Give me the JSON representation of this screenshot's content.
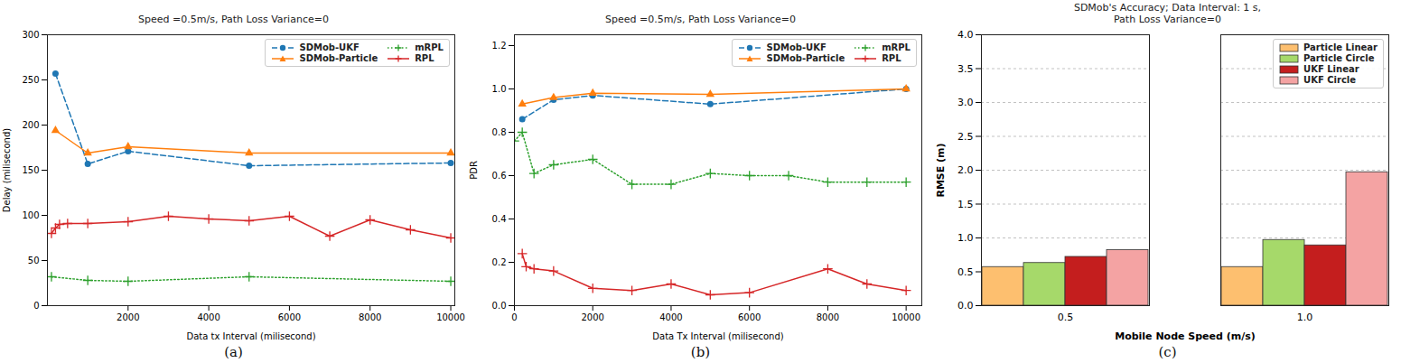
{
  "chart_data": [
    {
      "type": "line",
      "title": "Speed =0.5m/s, Path Loss Variance=0",
      "caption": "(a)",
      "x_label": "Data tx Interval (milisecond)",
      "y_label": "Delay (milisecond)",
      "xlim": [
        0,
        10100
      ],
      "xticks": [
        2000,
        4000,
        6000,
        8000,
        10000
      ],
      "ylim": [
        0,
        300
      ],
      "yticks": [
        0,
        50,
        100,
        150,
        200,
        250,
        300
      ],
      "grid": false,
      "legend": "upper right",
      "series": [
        {
          "name": "SDMob-UKF",
          "color": "#1f77b4",
          "marker": "circle",
          "line_style": "dashed",
          "x": [
            200,
            1000,
            2000,
            5000,
            10000
          ],
          "values": [
            257,
            157,
            171,
            155,
            158
          ]
        },
        {
          "name": "SDMob-Particle",
          "color": "#ff7f0e",
          "marker": "triangle",
          "line_style": "solid",
          "x": [
            200,
            1000,
            2000,
            5000,
            10000
          ],
          "values": [
            194,
            169,
            176,
            169,
            169
          ]
        },
        {
          "name": "mRPL",
          "color": "#2ca02c",
          "marker": "plus",
          "line_style": "dotted",
          "x": [
            100,
            1000,
            2000,
            5000,
            10000
          ],
          "values": [
            32,
            28,
            27,
            32,
            27
          ]
        },
        {
          "name": "RPL",
          "color": "#d62728",
          "marker": "plus",
          "line_style": "solid",
          "x": [
            100,
            200,
            300,
            500,
            1000,
            2000,
            3000,
            4000,
            5000,
            6000,
            7000,
            8000,
            9000,
            10000
          ],
          "values": [
            80,
            86,
            90,
            91,
            91,
            93,
            99,
            96,
            94,
            99,
            77,
            95,
            84,
            75
          ]
        }
      ]
    },
    {
      "type": "line",
      "title": "Speed =0.5m/s, Path Loss Variance=0",
      "caption": "(b)",
      "x_label": "Data Tx Interval (milisecond)",
      "y_label": "PDR",
      "xlim": [
        0,
        10400
      ],
      "xticks": [
        0,
        2000,
        4000,
        6000,
        8000,
        10000
      ],
      "ylim": [
        0,
        1.25
      ],
      "yticks": [
        {
          "value": 0,
          "label": "0.0"
        },
        0.2,
        0.4,
        0.6,
        0.8,
        {
          "value": 1,
          "label": "1.0"
        },
        1.2
      ],
      "grid": false,
      "legend": "upper right",
      "series": [
        {
          "name": "SDMob-UKF",
          "color": "#1f77b4",
          "marker": "circle",
          "line_style": "dashed",
          "x": [
            200,
            1000,
            2000,
            5000,
            10000
          ],
          "values": [
            0.86,
            0.95,
            0.97,
            0.93,
            1.0
          ]
        },
        {
          "name": "SDMob-Particle",
          "color": "#ff7f0e",
          "marker": "triangle",
          "line_style": "solid",
          "x": [
            200,
            1000,
            2000,
            5000,
            10000
          ],
          "values": [
            0.93,
            0.96,
            0.98,
            0.975,
            1.0
          ]
        },
        {
          "name": "mRPL",
          "color": "#2ca02c",
          "marker": "plus",
          "line_style": "dotted",
          "x": [
            0,
            200,
            500,
            1000,
            2000,
            3000,
            4000,
            5000,
            6000,
            7000,
            8000,
            9000,
            10000
          ],
          "values": [
            0.76,
            0.8,
            0.61,
            0.65,
            0.675,
            0.56,
            0.56,
            0.61,
            0.6,
            0.6,
            0.57,
            0.57,
            0.57
          ]
        },
        {
          "name": "RPL",
          "color": "#d62728",
          "marker": "plus",
          "line_style": "solid",
          "x": [
            200,
            300,
            500,
            1000,
            2000,
            3000,
            4000,
            5000,
            6000,
            8000,
            9000,
            10000
          ],
          "values": [
            0.24,
            0.18,
            0.17,
            0.16,
            0.08,
            0.07,
            0.1,
            0.05,
            0.06,
            0.17,
            0.1,
            0.07
          ]
        }
      ]
    },
    {
      "type": "bar",
      "title": "SDMob's Accuracy; Data Interval: 1 s,",
      "subtitle": "Path Loss Variance=0",
      "caption": "(c)",
      "x_label": "Mobile Node Speed (m/s)",
      "y_label": "RMSE (m)",
      "categories": [
        "0.5",
        "1.0"
      ],
      "ylim": [
        0,
        4
      ],
      "yticks": [
        {
          "value": 0,
          "label": "0.0"
        },
        0.5,
        {
          "value": 1,
          "label": "1.0"
        },
        1.5,
        {
          "value": 2,
          "label": "2.0"
        },
        2.5,
        {
          "value": 3,
          "label": "3.0"
        },
        3.5,
        {
          "value": 4,
          "label": "4.0"
        }
      ],
      "grid": true,
      "legend": "upper right",
      "series": [
        {
          "name": "Particle Linear",
          "color": "#fdbf6f",
          "values": [
            0.57,
            0.57
          ]
        },
        {
          "name": "Particle Circle",
          "color": "#a6d96a",
          "values": [
            0.63,
            0.97
          ]
        },
        {
          "name": "UKF Linear",
          "color": "#c41e1e",
          "values": [
            0.72,
            0.89
          ]
        },
        {
          "name": "UKF Circle",
          "color": "#f4a3a3",
          "values": [
            0.82,
            1.97
          ]
        }
      ]
    }
  ]
}
